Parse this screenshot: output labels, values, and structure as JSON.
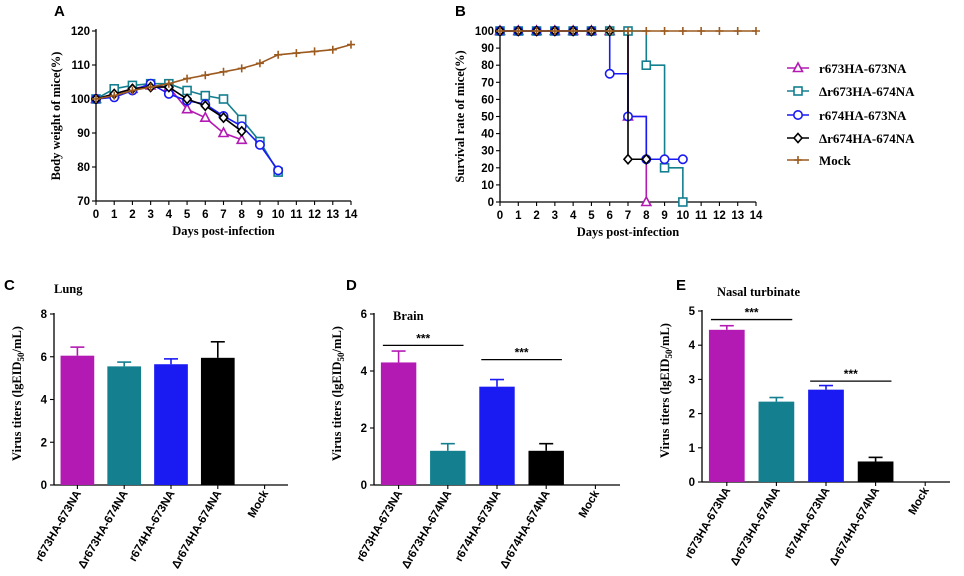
{
  "colors": {
    "r673HA-673NA": "#b31ab3",
    "Δr673HA-674NA": "#137f8f",
    "r674HA-673NA": "#1a1af2",
    "Δr674HA-674NA": "#000000",
    "Mock": "#9c5a1f"
  },
  "chart_data": [
    {
      "panel": "A",
      "type": "line",
      "xlabel": "Days post-infection",
      "ylabel": "Body weight of mice(%)",
      "xlim": [
        0,
        14
      ],
      "ylim": [
        70,
        120
      ],
      "xticks": [
        "0",
        "1",
        "2",
        "3",
        "4",
        "5",
        "6",
        "7",
        "8",
        "9",
        "10",
        "11",
        "12",
        "13",
        "14"
      ],
      "yticks": [
        "70",
        "80",
        "90",
        "100",
        "110",
        "120"
      ],
      "series": [
        {
          "name": "r673HA-673NA",
          "marker": "triangle",
          "x": [
            0,
            1,
            2,
            3,
            4,
            5,
            6,
            7,
            8
          ],
          "values": [
            100,
            101.5,
            103,
            104,
            103.5,
            97,
            94.5,
            90,
            88
          ]
        },
        {
          "name": "Δr673HA-674NA",
          "marker": "square",
          "x": [
            0,
            1,
            2,
            3,
            4,
            5,
            6,
            7,
            8,
            9,
            10
          ],
          "values": [
            100,
            103,
            104,
            104.5,
            104.5,
            102.5,
            101,
            100,
            94,
            87.5,
            78.5
          ]
        },
        {
          "name": "r674HA-673NA",
          "marker": "circle",
          "x": [
            0,
            1,
            2,
            3,
            4,
            5,
            6,
            7,
            8,
            9,
            10
          ],
          "values": [
            100,
            100.5,
            102.5,
            104.5,
            101.5,
            99.5,
            98.5,
            95,
            92,
            86.5,
            79
          ]
        },
        {
          "name": "Δr674HA-674NA",
          "marker": "diamond",
          "x": [
            0,
            1,
            2,
            3,
            4,
            5,
            6,
            7,
            8
          ],
          "values": [
            100,
            101.5,
            103,
            103.5,
            103.5,
            100,
            98,
            94.5,
            90.5
          ]
        },
        {
          "name": "Mock",
          "marker": "plus",
          "x": [
            0,
            1,
            2,
            3,
            4,
            5,
            6,
            7,
            8,
            9,
            10,
            11,
            12,
            13,
            14
          ],
          "values": [
            100,
            101,
            102.5,
            103.5,
            104.5,
            106,
            107,
            108,
            109,
            110.5,
            113,
            113.5,
            114,
            114.5,
            116
          ]
        }
      ]
    },
    {
      "panel": "B",
      "type": "line",
      "step": true,
      "xlabel": "Days post-infection",
      "ylabel": "Survival rate of mice(%)",
      "xlim": [
        0,
        14
      ],
      "ylim": [
        0,
        100
      ],
      "xticks": [
        "0",
        "1",
        "2",
        "3",
        "4",
        "5",
        "6",
        "7",
        "8",
        "9",
        "10",
        "11",
        "12",
        "13",
        "14"
      ],
      "yticks": [
        "0",
        "10",
        "20",
        "30",
        "40",
        "50",
        "60",
        "70",
        "80",
        "90",
        "100"
      ],
      "series": [
        {
          "name": "r673HA-673NA",
          "marker": "triangle",
          "x": [
            0,
            1,
            2,
            3,
            4,
            5,
            6,
            7,
            8
          ],
          "values": [
            100,
            100,
            100,
            100,
            100,
            100,
            100,
            50,
            0
          ]
        },
        {
          "name": "Δr673HA-674NA",
          "marker": "square",
          "x": [
            0,
            1,
            2,
            3,
            4,
            5,
            6,
            7,
            8,
            9,
            10
          ],
          "values": [
            100,
            100,
            100,
            100,
            100,
            100,
            100,
            100,
            80,
            20,
            0
          ]
        },
        {
          "name": "r674HA-673NA",
          "marker": "circle",
          "x": [
            0,
            1,
            2,
            3,
            4,
            5,
            6,
            7,
            8,
            9,
            10
          ],
          "values": [
            100,
            100,
            100,
            100,
            100,
            100,
            75,
            50,
            25,
            25,
            25
          ]
        },
        {
          "name": "Δr674HA-674NA",
          "marker": "diamond",
          "x": [
            0,
            1,
            2,
            3,
            4,
            5,
            6,
            7,
            8
          ],
          "values": [
            100,
            100,
            100,
            100,
            100,
            100,
            100,
            25,
            25
          ]
        },
        {
          "name": "Mock",
          "marker": "plus",
          "x": [
            0,
            1,
            2,
            3,
            4,
            5,
            6,
            7,
            8,
            9,
            10,
            11,
            12,
            13,
            14
          ],
          "values": [
            100,
            100,
            100,
            100,
            100,
            100,
            100,
            100,
            100,
            100,
            100,
            100,
            100,
            100,
            100
          ]
        }
      ],
      "legend": [
        "r673HA-673NA",
        "Δr673HA-674NA",
        "r674HA-673NA",
        "Δr674HA-674NA",
        "Mock"
      ]
    },
    {
      "panel": "C",
      "type": "bar",
      "title": "Lung",
      "ylabel": "Virus titers (lgEID50/mL)",
      "ylim": [
        0,
        8
      ],
      "yticks": [
        "0",
        "2",
        "4",
        "6",
        "8"
      ],
      "categories": [
        "r673HA-673NA",
        "Δr673HA-674NA",
        "r674HA-673NA",
        "Δr674HA-674NA",
        "Mock"
      ],
      "values": [
        6.05,
        5.55,
        5.65,
        5.95,
        0
      ],
      "errors": [
        0.4,
        0.2,
        0.25,
        0.75,
        0
      ],
      "significance": []
    },
    {
      "panel": "D",
      "type": "bar",
      "title": "Brain",
      "ylabel": "Virus titers (lgEID50/mL)",
      "ylim": [
        0,
        6
      ],
      "yticks": [
        "0",
        "2",
        "4",
        "6"
      ],
      "categories": [
        "r673HA-673NA",
        "Δr673HA-674NA",
        "r674HA-673NA",
        "Δr674HA-674NA",
        "Mock"
      ],
      "values": [
        4.3,
        1.2,
        3.45,
        1.2,
        0
      ],
      "errors": [
        0.4,
        0.25,
        0.25,
        0.25,
        0
      ],
      "significance": [
        {
          "from": 0,
          "to": 1,
          "label": "***",
          "y": 4.9
        },
        {
          "from": 2,
          "to": 3,
          "label": "***",
          "y": 4.4
        }
      ]
    },
    {
      "panel": "E",
      "type": "bar",
      "title": "Nasal turbinate",
      "ylabel": "Virus titers (lgEID50/mL)",
      "ylim": [
        0,
        5
      ],
      "yticks": [
        "0",
        "1",
        "2",
        "3",
        "4",
        "5"
      ],
      "categories": [
        "r673HA-673NA",
        "Δr673HA-674NA",
        "r674HA-673NA",
        "Δr674HA-674NA",
        "Mock"
      ],
      "values": [
        4.45,
        2.35,
        2.7,
        0.6,
        0
      ],
      "errors": [
        0.12,
        0.12,
        0.12,
        0.12,
        0
      ],
      "significance": [
        {
          "from": 0,
          "to": 1,
          "label": "***",
          "y": 4.75
        },
        {
          "from": 2,
          "to": 3,
          "label": "***",
          "y": 2.95
        }
      ]
    }
  ]
}
